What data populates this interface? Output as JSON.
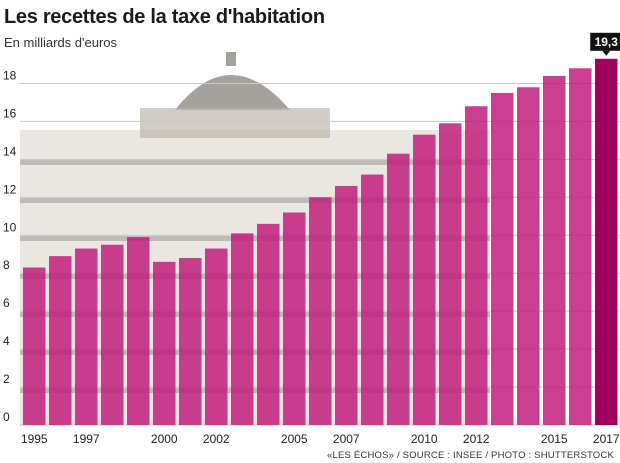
{
  "header": {
    "title": "Les recettes de la taxe d'habitation",
    "subtitle": "En milliards d'euros"
  },
  "footer": {
    "credit": "«LES ÉCHOS» / SOURCE : INSEE / PHOTO : SHUTTERSTOCK"
  },
  "colors": {
    "bar": "#c21d7c",
    "bar_highlight": "#a0005e",
    "badge": "#111111",
    "grid": "#c8c8c8",
    "photo_wall": "#d9d4cc",
    "photo_dark": "#6e6a66"
  },
  "background_photo": "parisian-haussmann-building",
  "chart_data": {
    "type": "bar",
    "title": "Les recettes de la taxe d'habitation",
    "subtitle": "En milliards d'euros",
    "xlabel": "",
    "ylabel": "",
    "ylim": [
      0,
      19.5
    ],
    "yticks": [
      0,
      2,
      4,
      6,
      8,
      10,
      12,
      14,
      16,
      18
    ],
    "grid": true,
    "categories": [
      "1995",
      "1996",
      "1997",
      "1998",
      "1999",
      "2000",
      "2001",
      "2002",
      "2003",
      "2004",
      "2005",
      "2006",
      "2007",
      "2008",
      "2009",
      "2010",
      "2011",
      "2012",
      "2013",
      "2014",
      "2015",
      "2016",
      "2017"
    ],
    "values": [
      8.3,
      8.9,
      9.3,
      9.5,
      9.9,
      8.6,
      8.8,
      9.3,
      10.1,
      10.6,
      11.2,
      12.0,
      12.6,
      13.2,
      14.3,
      15.3,
      15.9,
      16.8,
      17.5,
      17.8,
      18.4,
      18.8,
      19.3
    ],
    "x_tick_labels": [
      "1995",
      "1997",
      "2000",
      "2002",
      "2005",
      "2007",
      "2010",
      "2012",
      "2015",
      "2017"
    ],
    "highlight": {
      "category": "2017",
      "label": "19,3"
    }
  }
}
